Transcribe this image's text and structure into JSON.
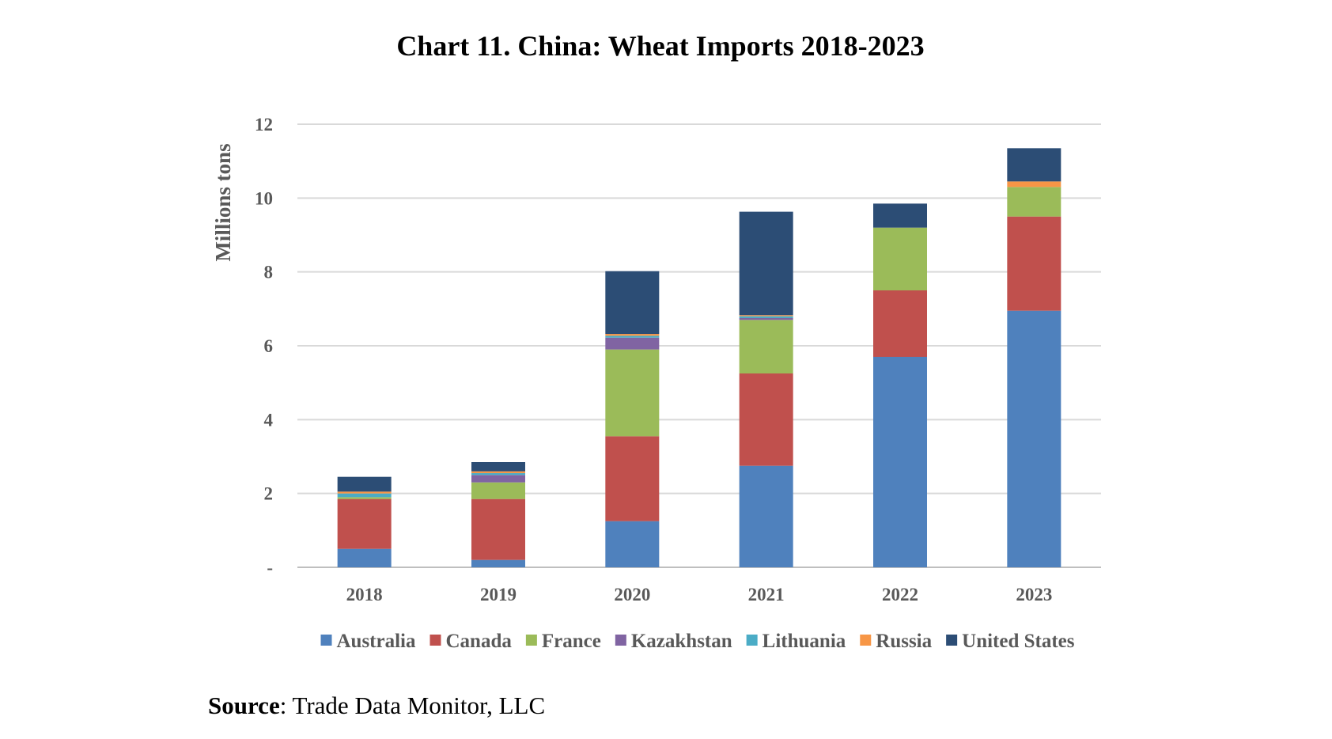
{
  "chart_data": {
    "type": "bar",
    "stacked": true,
    "title": "Chart 11. China: Wheat Imports 2018-2023",
    "ylabel": "Millions  tons",
    "xlabel": "",
    "ylim": [
      0,
      12
    ],
    "yticks": [
      {
        "value": 0,
        "label": "-"
      },
      {
        "value": 2,
        "label": "2"
      },
      {
        "value": 4,
        "label": "4"
      },
      {
        "value": 6,
        "label": "6"
      },
      {
        "value": 8,
        "label": "8"
      },
      {
        "value": 10,
        "label": "10"
      },
      {
        "value": 12,
        "label": "12"
      }
    ],
    "grid": true,
    "legend_position": "bottom",
    "categories": [
      "2018",
      "2019",
      "2020",
      "2021",
      "2022",
      "2023"
    ],
    "series": [
      {
        "name": "Australia",
        "color": "#4f81bd",
        "values": [
          0.5,
          0.2,
          1.25,
          2.75,
          5.7,
          6.95
        ]
      },
      {
        "name": "Canada",
        "color": "#c0504d",
        "values": [
          1.35,
          1.65,
          2.3,
          2.5,
          1.8,
          2.55
        ]
      },
      {
        "name": "France",
        "color": "#9bbb59",
        "values": [
          0.05,
          0.45,
          2.35,
          1.45,
          1.7,
          0.8
        ]
      },
      {
        "name": "Kazakhstan",
        "color": "#8064a2",
        "values": [
          0.0,
          0.2,
          0.32,
          0.05,
          0.0,
          0.0
        ]
      },
      {
        "name": "Lithuania",
        "color": "#4bacc6",
        "values": [
          0.1,
          0.05,
          0.05,
          0.05,
          0.0,
          0.0
        ]
      },
      {
        "name": "Russia",
        "color": "#f79646",
        "values": [
          0.05,
          0.05,
          0.05,
          0.03,
          0.0,
          0.15
        ]
      },
      {
        "name": "United States",
        "color": "#2c4d75",
        "values": [
          0.4,
          0.25,
          1.7,
          2.8,
          0.65,
          0.9
        ]
      }
    ]
  },
  "source": {
    "label": "Source",
    "text": ": Trade Data Monitor, LLC"
  }
}
